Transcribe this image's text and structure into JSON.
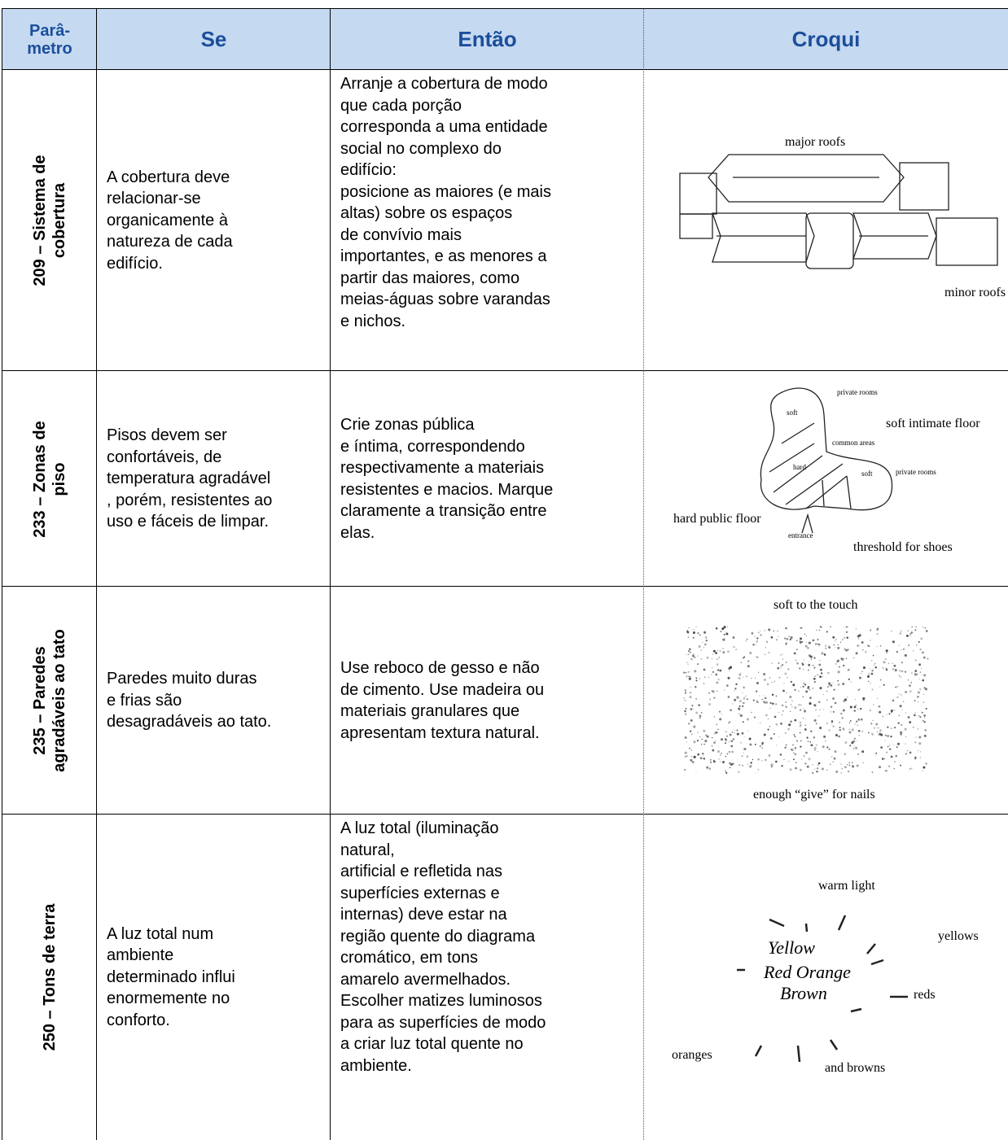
{
  "table": {
    "header": [
      [
        "Parâ-",
        "metro"
      ],
      "Se",
      "Então",
      "Croqui"
    ],
    "rows": [
      {
        "parametro": [
          "209 – Sistema de",
          "cobertura"
        ],
        "se": [
          "A cobertura deve",
          "relacionar-se",
          "organicamente à",
          "natureza de cada",
          "edifício."
        ],
        "entao": [
          "Arranje a cobertura de modo",
          "que cada porção",
          "corresponda a uma entidade",
          "social no complexo do",
          "edifício:",
          "posicione as maiores (e mais",
          "altas) sobre os espaços",
          "de convívio mais",
          "importantes, e as menores a",
          "partir das maiores, como",
          "meias-águas sobre varandas",
          "e nichos."
        ],
        "croqui": [
          "major roofs",
          "minor roofs"
        ]
      },
      {
        "parametro": [
          "233 – Zonas de",
          "piso"
        ],
        "se": [
          "Pisos devem ser",
          "confortáveis, de",
          "temperatura agradável",
          ", porém, resistentes ao",
          "uso e fáceis de limpar."
        ],
        "entao": [
          "Crie zonas pública",
          "e íntima, correspondendo",
          "respectivamente a materiais",
          "resistentes e macios. Marque",
          "claramente a transição entre",
          "elas."
        ],
        "croqui": [
          "private rooms",
          "soft intimate floor",
          "soft",
          "common areas",
          "hard",
          "soft",
          "private rooms",
          "hard public floor",
          "entrance",
          "threshold for shoes"
        ]
      },
      {
        "parametro": [
          "235 – Paredes",
          "agradáveis ao tato"
        ],
        "se": [
          "Paredes muito duras",
          "e frias são",
          "desagradáveis ao tato."
        ],
        "entao": [
          "Use reboco de gesso e não",
          "de cimento.  Use madeira ou",
          "materiais granulares que",
          "apresentam textura natural."
        ],
        "croqui": [
          "soft to the touch",
          "enough “give” for nails"
        ]
      },
      {
        "parametro": [
          "250 – Tons de terra"
        ],
        "se": [
          "A luz total num",
          "ambiente",
          "determinado influi",
          "enormemente no",
          "conforto."
        ],
        "entao": [
          "A luz total (iluminação",
          "natural,",
          "artificial e refletida nas",
          "superfícies externas e",
          "internas) deve estar na",
          "região quente do diagrama",
          "cromático, em tons",
          "amarelo avermelhados.",
          "Escolher matizes luminosos",
          "para as superfícies de modo",
          "a criar luz total quente no",
          "ambiente."
        ],
        "croqui": [
          "warm light",
          "yellows",
          "Yellow",
          "Red Orange",
          "Brown",
          "reds",
          "oranges",
          "and browns"
        ]
      }
    ]
  }
}
